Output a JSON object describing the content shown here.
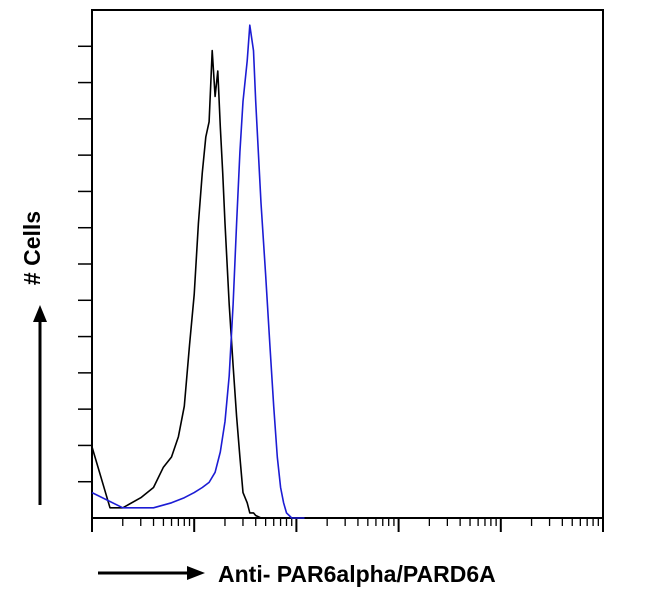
{
  "chart_data": {
    "type": "line",
    "title": "",
    "xlabel": "Anti- PAR6alpha/PARD6A",
    "ylabel": "# Cells",
    "x_scale": "log",
    "xlim": [
      1,
      100000
    ],
    "ylim": [
      0,
      100
    ],
    "grid": false,
    "legend": "none",
    "series": [
      {
        "color": "#000000",
        "x": [
          1,
          1.5,
          2,
          3,
          4,
          5,
          6,
          7,
          8,
          9,
          10,
          11,
          12,
          13,
          14,
          15,
          16,
          17,
          18,
          19,
          20,
          22,
          24,
          26,
          28,
          30,
          33,
          35,
          38,
          40,
          45,
          50,
          55,
          60
        ],
        "y": [
          14,
          2,
          2,
          4,
          6,
          10,
          12,
          16,
          22,
          34,
          44,
          58,
          68,
          75,
          78,
          92,
          83,
          88,
          77,
          68,
          58,
          42,
          30,
          20,
          12,
          5,
          3,
          1,
          1,
          0.5,
          0,
          0,
          0,
          0
        ]
      },
      {
        "color": "#1c1cd4",
        "x": [
          1,
          2,
          4,
          6,
          8,
          10,
          12,
          14,
          16,
          18,
          20,
          22,
          24,
          26,
          28,
          30,
          33,
          35,
          38,
          40,
          45,
          50,
          55,
          60,
          65,
          70,
          75,
          80,
          85,
          90,
          100,
          110,
          120
        ],
        "y": [
          5,
          2,
          2,
          3,
          4,
          5,
          6,
          7,
          9,
          13,
          19,
          28,
          42,
          58,
          72,
          82,
          90,
          97,
          92,
          82,
          62,
          48,
          34,
          22,
          12,
          6,
          3,
          1,
          0.5,
          0,
          0,
          0,
          0
        ]
      }
    ]
  }
}
